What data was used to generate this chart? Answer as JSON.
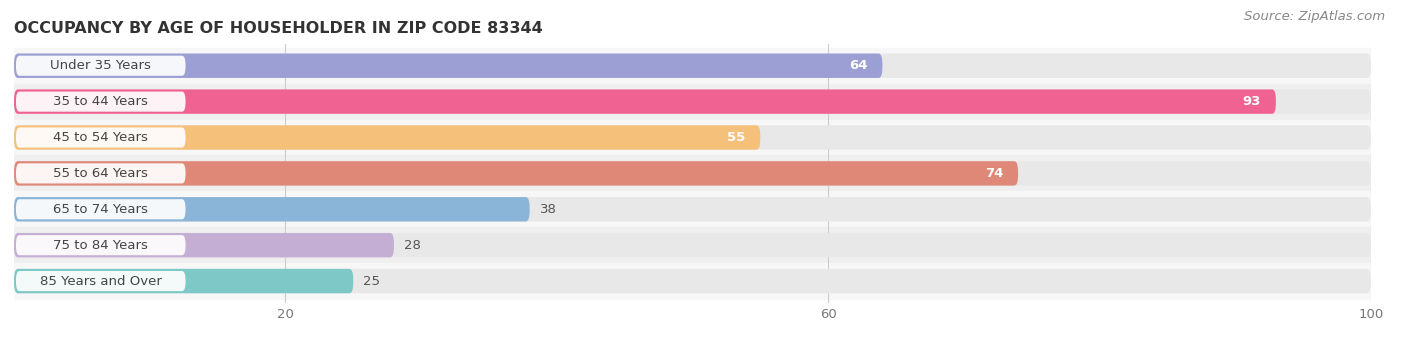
{
  "title": "OCCUPANCY BY AGE OF HOUSEHOLDER IN ZIP CODE 83344",
  "source": "Source: ZipAtlas.com",
  "categories": [
    "Under 35 Years",
    "35 to 44 Years",
    "45 to 54 Years",
    "55 to 64 Years",
    "65 to 74 Years",
    "75 to 84 Years",
    "85 Years and Over"
  ],
  "values": [
    64,
    93,
    55,
    74,
    38,
    28,
    25
  ],
  "bar_colors": [
    "#9b9fd4",
    "#f06292",
    "#f5c07a",
    "#e08878",
    "#8ab4d8",
    "#c4aed4",
    "#7ec8c8"
  ],
  "bar_bg_color": "#e8e8e8",
  "background_color": "#ffffff",
  "data_max": 100,
  "xlim_max": 108,
  "xticks": [
    20,
    60,
    100
  ],
  "title_fontsize": 11.5,
  "label_fontsize": 9.5,
  "value_fontsize": 9.5,
  "source_fontsize": 9.5,
  "bar_height": 0.68,
  "row_bg_colors": [
    "#f7f7f7",
    "#efefef"
  ],
  "value_inside_threshold": 50,
  "value_inside_color": "#ffffff",
  "value_outside_color": "#555555"
}
